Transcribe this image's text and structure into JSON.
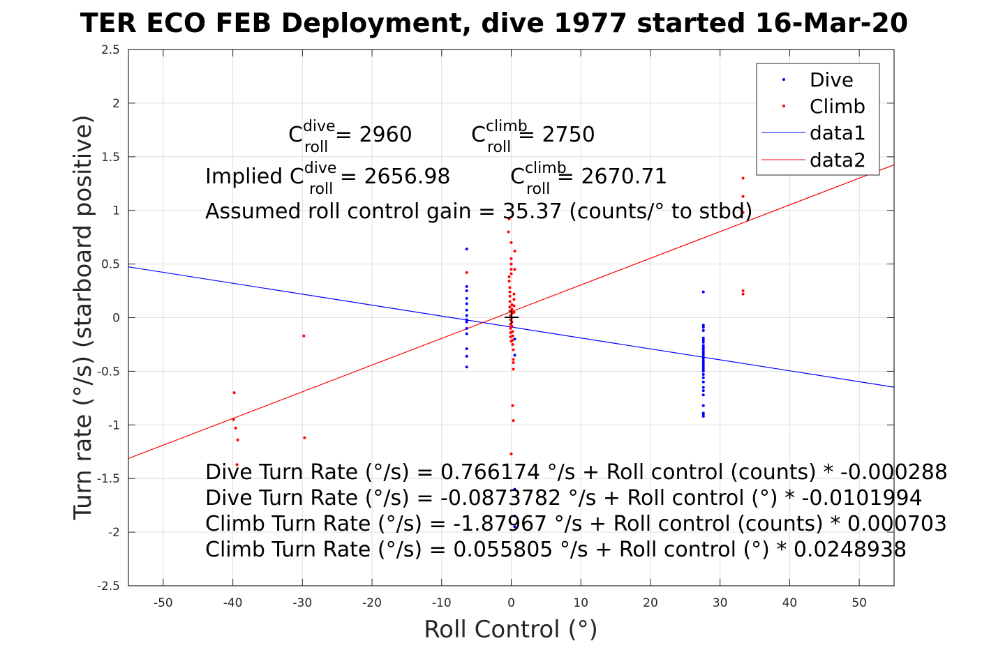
{
  "chart_data": {
    "type": "scatter",
    "title": "TER ECO FEB Deployment, dive 1977 started 16-Mar-20",
    "xlabel": "Roll Control (°)",
    "ylabel": "Turn rate (°/s) (starboard positive)",
    "xlim": [
      -55,
      55
    ],
    "ylim": [
      -2.5,
      2.5
    ],
    "xticks": [
      -50,
      -40,
      -30,
      -20,
      -10,
      0,
      10,
      20,
      30,
      40,
      50
    ],
    "yticks": [
      -2.5,
      -2,
      -1.5,
      -1,
      -0.5,
      0,
      0.5,
      1,
      1.5,
      2,
      2.5
    ],
    "grid": true,
    "legend_position": "top-right",
    "legend": [
      "Dive",
      "Climb",
      "data1",
      "data2"
    ],
    "colors": {
      "dive": "#0000ff",
      "climb": "#ff0000",
      "axes": "#262626",
      "grid": "#dfdfdf"
    },
    "series": [
      {
        "name": "Dive",
        "kind": "points",
        "x": [
          -6.4,
          -6.4,
          -6.4,
          -6.4,
          -6.4,
          -6.4,
          -6.4,
          -6.4,
          -6.4,
          -6.4,
          -6.4,
          -6.4,
          -6.4,
          -6.4,
          0.5,
          0.5,
          0.5,
          0.5,
          0.5,
          27.6,
          27.6,
          27.6,
          27.6,
          27.6,
          27.6,
          27.6,
          27.6,
          27.6,
          27.6,
          27.6,
          27.6,
          27.6,
          27.6,
          27.6,
          27.6,
          27.6,
          27.6,
          27.6,
          27.6,
          27.6,
          27.6,
          27.6,
          27.6,
          27.6,
          27.6,
          27.6,
          27.6,
          27.6,
          27.6
        ],
        "y": [
          0.64,
          0.29,
          0.25,
          0.18,
          0.13,
          0.07,
          0.02,
          -0.02,
          -0.04,
          -0.1,
          -0.15,
          -0.29,
          -0.36,
          -0.46,
          -0.2,
          -0.35,
          -1.6,
          -1.85,
          -1.95,
          0.24,
          -0.07,
          -0.09,
          -0.12,
          -0.19,
          -0.21,
          -0.23,
          -0.26,
          -0.28,
          -0.3,
          -0.32,
          -0.34,
          -0.36,
          -0.38,
          -0.4,
          -0.42,
          -0.44,
          -0.46,
          -0.48,
          -0.5,
          -0.53,
          -0.56,
          -0.6,
          -0.65,
          -0.68,
          -0.72,
          -0.82,
          -0.89,
          -0.92,
          -0.9
        ]
      },
      {
        "name": "Climb",
        "kind": "points",
        "x": [
          -39.8,
          -39.9,
          -39.6,
          -39.3,
          -39.4,
          -29.8,
          -29.7,
          -6.4,
          -0.4,
          -0.3,
          -0.3,
          -0.3,
          -0.2,
          -0.2,
          -0.2,
          -0.2,
          -0.2,
          -0.2,
          -0.1,
          -0.1,
          -0.1,
          -0.1,
          -0.1,
          -0.1,
          0.0,
          0.0,
          0.0,
          0.0,
          0.0,
          0.0,
          0.1,
          0.1,
          0.1,
          0.1,
          0.1,
          0.1,
          0.2,
          0.2,
          0.2,
          0.2,
          0.3,
          0.3,
          0.3,
          0.3,
          0.4,
          0.4,
          0.4,
          0.4,
          0.5,
          0.5,
          0.2,
          0.3,
          0.0,
          33.3,
          33.3,
          33.3,
          33.3,
          33.3
        ],
        "y": [
          -0.7,
          -0.95,
          -1.03,
          -1.14,
          -1.37,
          -0.17,
          -1.12,
          0.42,
          0.8,
          0.92,
          0.38,
          0.34,
          0.28,
          0.24,
          0.2,
          0.15,
          0.1,
          0.06,
          0.02,
          -0.02,
          -0.06,
          -0.1,
          -0.14,
          -0.18,
          -0.22,
          0.7,
          0.55,
          0.5,
          0.45,
          0.41,
          0.12,
          0.08,
          0.04,
          0.0,
          -0.04,
          -0.08,
          -0.13,
          -0.17,
          -0.21,
          -0.25,
          -0.3,
          -0.39,
          -0.42,
          -0.48,
          0.22,
          0.17,
          0.11,
          0.05,
          0.62,
          0.45,
          -0.82,
          -0.96,
          -1.27,
          1.3,
          1.13,
          0.98,
          0.25,
          0.22
        ]
      },
      {
        "name": "data1",
        "kind": "line",
        "x": [
          -55,
          55
        ],
        "y": [
          0.4736,
          -0.6484
        ]
      },
      {
        "name": "data2",
        "kind": "line",
        "x": [
          -55,
          55
        ],
        "y": [
          -1.3133,
          1.4249
        ]
      }
    ],
    "annotations": {
      "c_dive": {
        "base": "C",
        "sup": "dive",
        "sub": "roll",
        "rest": " = 2960"
      },
      "c_climb": {
        "base": "C",
        "sup": "climb",
        "sub": "roll",
        "rest": " = 2750"
      },
      "implied_prefix": "Implied ",
      "implied_dive": {
        "base": "C",
        "sup": "dive",
        "sub": "roll",
        "rest": " = 2656.98"
      },
      "implied_climb": {
        "base": "C",
        "sup": "climb",
        "sub": "roll",
        "rest": " = 2670.71"
      },
      "gain": "Assumed roll control gain = 35.37 (counts/° to stbd)",
      "eq1": "Dive Turn Rate (°/s) = 0.766174 °/s + Roll control (counts) * -0.000288",
      "eq2": "Dive Turn Rate (°/s) = -0.0873782 °/s + Roll control (°) * -0.0101994",
      "eq3": "Climb Turn Rate (°/s) = -1.87967 °/s + Roll control (counts) * 0.000703",
      "eq4": "Climb Turn Rate (°/s) = 0.055805 °/s + Roll control (°) * 0.0248938"
    }
  }
}
